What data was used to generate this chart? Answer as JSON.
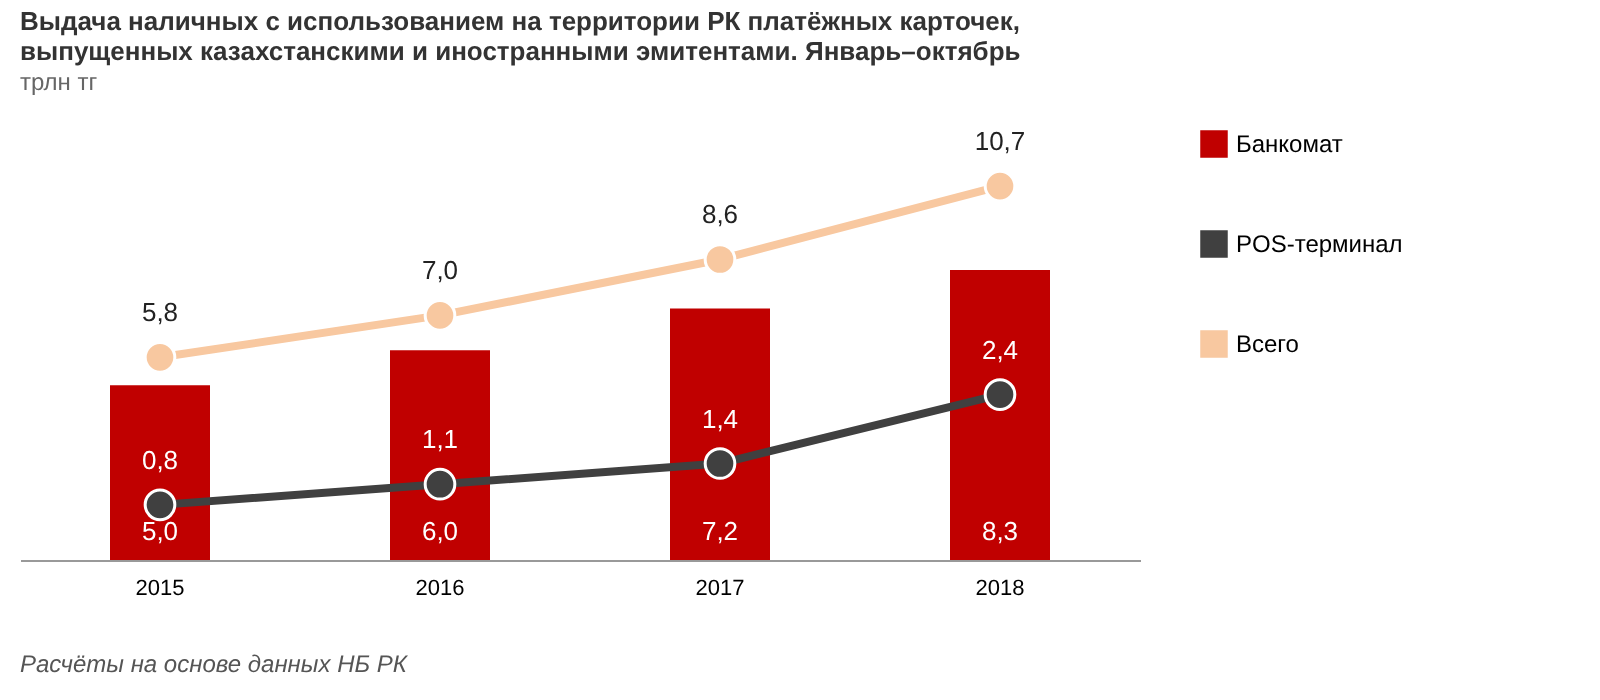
{
  "chart_data": {
    "type": "bar",
    "title": "Выдача наличных с использованием на территории РК платёжных  карточек,\nвыпущенных казахстанскими и иностранными эмитентами. Январь–октябрь",
    "subtitle": "трлн тг",
    "categories": [
      "2015",
      "2016",
      "2017",
      "2018"
    ],
    "series": [
      {
        "name": "Банкомат",
        "color": "#c00000",
        "values": [
          5.0,
          6.0,
          7.2,
          8.3
        ],
        "value_labels": [
          "5,0",
          "6,0",
          "7,2",
          "8,3"
        ]
      },
      {
        "name": "POS-терминал",
        "type": "line",
        "axis": "y2",
        "color": "#404040",
        "values": [
          0.8,
          1.1,
          1.4,
          2.4
        ],
        "value_labels": [
          "0,8",
          "1,1",
          "1,4",
          "2,4"
        ]
      },
      {
        "name": "Всего",
        "type": "line",
        "color": "#f8c8a0",
        "values": [
          5.8,
          7.0,
          8.6,
          10.7
        ],
        "value_labels": [
          "5,8",
          "7,0",
          "8,6",
          "10,7"
        ]
      }
    ],
    "legend": "right",
    "marker": "circle",
    "annotations": [
      "Расчёты на основе данных НБ РК"
    ]
  }
}
